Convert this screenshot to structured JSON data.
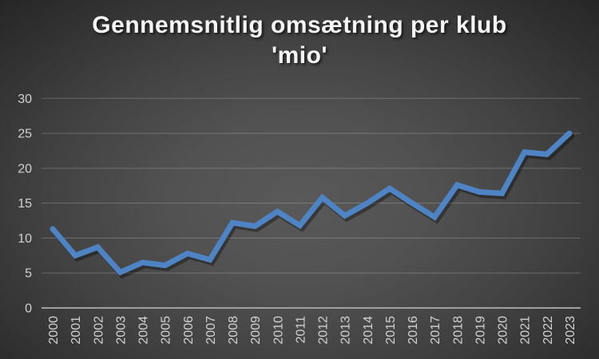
{
  "title": {
    "line1": "Gennemsnitlig omsætning per klub",
    "line2": "'mio'"
  },
  "chart_data": {
    "type": "line",
    "title": "Gennemsnitlig omsætning per klub 'mio'",
    "categories": [
      "2000",
      "2001",
      "2002",
      "2003",
      "2004",
      "2005",
      "2006",
      "2007",
      "2008",
      "2009",
      "2010",
      "2011",
      "2012",
      "2013",
      "2014",
      "2015",
      "2016",
      "2017",
      "2018",
      "2019",
      "2020",
      "2021",
      "2022",
      "2023"
    ],
    "values": [
      11.3,
      7.5,
      8.7,
      5.1,
      6.5,
      6.1,
      7.8,
      6.9,
      12.2,
      11.7,
      13.8,
      11.8,
      15.8,
      13.2,
      15.0,
      17.1,
      15.0,
      13.0,
      17.6,
      16.6,
      16.4,
      22.3,
      22.0,
      25.0
    ],
    "xlabel": "",
    "ylabel": "",
    "ylim": [
      0,
      30
    ],
    "yticks": [
      0,
      5,
      10,
      15,
      20,
      25,
      30
    ],
    "grid": true,
    "legend": false,
    "colors": {
      "line": "#4e84c4",
      "line_shadow": "rgba(0,0,0,0.35)",
      "gridline": "rgba(255,255,255,0.22)",
      "axis": "#a0a0a0",
      "tick_label": "#d2d2d2",
      "title": "#f5f5f5"
    }
  }
}
